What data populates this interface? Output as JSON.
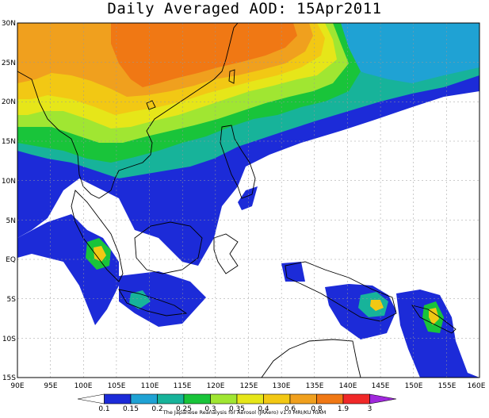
{
  "title": "Daily Averaged AOD: 15Apr2011",
  "credit": "The Japanese Reanalysis for Aerosol (JRAero) v1.0 MRI/KU RIAM",
  "lat_labels": [
    "30N",
    "25N",
    "20N",
    "15N",
    "10N",
    "5N",
    "EQ",
    "5S",
    "10S",
    "15S"
  ],
  "lon_labels": [
    "90E",
    "95E",
    "100E",
    "105E",
    "110E",
    "115E",
    "120E",
    "125E",
    "130E",
    "135E",
    "140E",
    "145E",
    "150E",
    "155E",
    "160E"
  ],
  "colorbar": {
    "levels": [
      "0.1",
      "0.15",
      "0.2",
      "0.25",
      "0.3",
      "0.35",
      "0.4",
      "0.6",
      "0.8",
      "1.9",
      "3"
    ],
    "colors": [
      "#1c2bd8",
      "#1fa2d4",
      "#17b39a",
      "#19c43a",
      "#a0e632",
      "#e6e619",
      "#f2c814",
      "#f0a01e",
      "#f07814",
      "#f02828",
      "#a028dc"
    ]
  },
  "map_extent": {
    "lon": [
      90,
      160
    ],
    "lat": [
      -15,
      30
    ]
  },
  "chart_data": {
    "type": "heatmap",
    "title": "Daily Averaged AOD: 15Apr2011",
    "x_range": [
      90,
      160
    ],
    "y_range": [
      -15,
      30
    ],
    "xlabel": "",
    "ylabel": "",
    "grid": true,
    "scale_levels": [
      0.1,
      0.15,
      0.2,
      0.25,
      0.3,
      0.35,
      0.4,
      0.6,
      0.8,
      1.9,
      3
    ],
    "regions_aod": [
      {
        "lon_range": [
          103,
          127
        ],
        "lat_range": [
          18,
          30
        ],
        "aod": 0.7
      },
      {
        "lon_range": [
          90,
          100
        ],
        "lat_range": [
          22,
          30
        ],
        "aod": 0.6
      },
      {
        "lon_range": [
          101,
          104
        ],
        "lat_range": [
          -1,
          1
        ],
        "aod": 0.6
      },
      {
        "lon_range": [
          143,
          146
        ],
        "lat_range": [
          -6,
          -4
        ],
        "aod": 0.6
      },
      {
        "lon_range": [
          153,
          155
        ],
        "lat_range": [
          -8,
          -5
        ],
        "aod": 0.4
      },
      {
        "lon_range": [
          130,
          160
        ],
        "lat_range": [
          20,
          30
        ],
        "aod": 0.25
      },
      {
        "lon_range": [
          90,
          100
        ],
        "lat_range": [
          -2,
          5
        ],
        "aod": 0.15
      }
    ]
  }
}
